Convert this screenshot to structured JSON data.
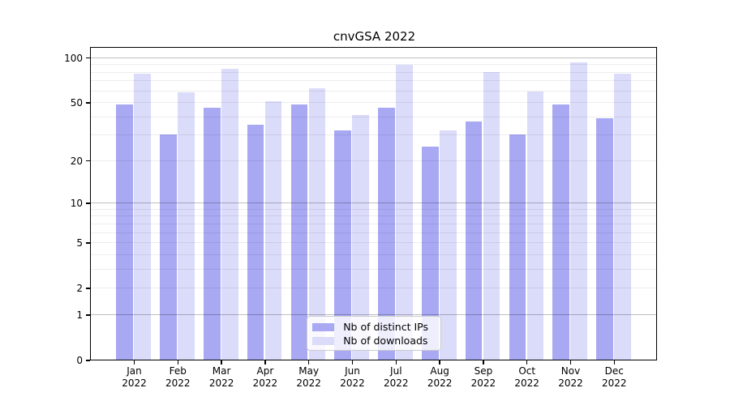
{
  "chart_data": {
    "type": "bar",
    "title": "cnvGSA 2022",
    "categories": [
      "Jan",
      "Feb",
      "Mar",
      "Apr",
      "May",
      "Jun",
      "Jul",
      "Aug",
      "Sep",
      "Oct",
      "Nov",
      "Dec"
    ],
    "category_year": "2022",
    "series": [
      {
        "name": "Nb of distinct IPs",
        "color": "#a8a8f3",
        "values": [
          48,
          30,
          46,
          35,
          48,
          32,
          46,
          25,
          37,
          30,
          48,
          39
        ]
      },
      {
        "name": "Nb of downloads",
        "color": "#dbdbfa",
        "values": [
          78,
          58,
          84,
          51,
          62,
          41,
          89,
          32,
          80,
          59,
          92,
          78
        ]
      }
    ],
    "xlabel": "",
    "ylabel": "",
    "yscale": "log1p",
    "ylim": [
      0,
      116
    ],
    "yticks": [
      {
        "label": "100",
        "value": 100
      },
      {
        "label": "50",
        "value": 50
      },
      {
        "label": "20",
        "value": 20
      },
      {
        "label": "10",
        "value": 10
      },
      {
        "label": "5",
        "value": 5
      },
      {
        "label": "2",
        "value": 2
      },
      {
        "label": "1",
        "value": 1
      },
      {
        "label": "0",
        "value": 0
      }
    ],
    "grid": "both",
    "grid_major_values": [
      1,
      10,
      100
    ],
    "grid_minor_values": [
      2,
      3,
      4,
      5,
      6,
      7,
      8,
      9,
      20,
      30,
      40,
      50,
      60,
      70,
      80,
      90
    ],
    "grid_major_color": "rgba(0,0,0,0.25)",
    "grid_minor_color": "rgba(0,0,0,0.07)",
    "axis_color": "#000000",
    "background_color": "#ffffff",
    "legend_position": "lower center"
  }
}
